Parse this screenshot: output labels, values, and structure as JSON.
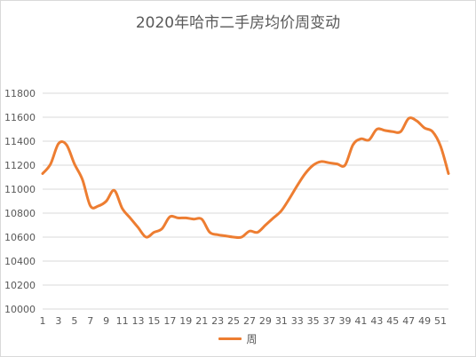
{
  "chart_data": {
    "type": "line",
    "title": "2020年哈市二手房均价周变动",
    "xlabel": "",
    "ylabel": "",
    "ylim": [
      10000,
      11800
    ],
    "y_ticks": [
      10000,
      10200,
      10400,
      10600,
      10800,
      11000,
      11200,
      11400,
      11600,
      11800
    ],
    "x_tick_labels": [
      "1",
      "3",
      "5",
      "7",
      "9",
      "11",
      "13",
      "15",
      "17",
      "19",
      "21",
      "23",
      "25",
      "27",
      "29",
      "31",
      "33",
      "35",
      "37",
      "39",
      "41",
      "43",
      "45",
      "47",
      "49",
      "51"
    ],
    "grid": "horizontal",
    "legend_position": "bottom",
    "x": [
      1,
      2,
      3,
      4,
      5,
      6,
      7,
      8,
      9,
      10,
      11,
      12,
      13,
      14,
      15,
      16,
      17,
      18,
      19,
      20,
      21,
      22,
      23,
      24,
      25,
      26,
      27,
      28,
      29,
      30,
      31,
      32,
      33,
      34,
      35,
      36,
      37,
      38,
      39,
      40,
      41,
      42,
      43,
      44,
      45,
      46,
      47,
      48,
      49,
      50,
      51,
      52
    ],
    "series": [
      {
        "name": "周",
        "color": "#ED7D31",
        "values": [
          11130,
          11210,
          11380,
          11370,
          11210,
          11080,
          10860,
          10860,
          10900,
          10990,
          10840,
          10760,
          10680,
          10600,
          10640,
          10670,
          10770,
          10760,
          10760,
          10750,
          10750,
          10640,
          10620,
          10610,
          10600,
          10600,
          10650,
          10640,
          10700,
          10760,
          10820,
          10920,
          11030,
          11130,
          11200,
          11230,
          11220,
          11210,
          11200,
          11370,
          11420,
          11410,
          11500,
          11490,
          11480,
          11480,
          11590,
          11570,
          11510,
          11480,
          11360,
          11130
        ]
      }
    ]
  }
}
